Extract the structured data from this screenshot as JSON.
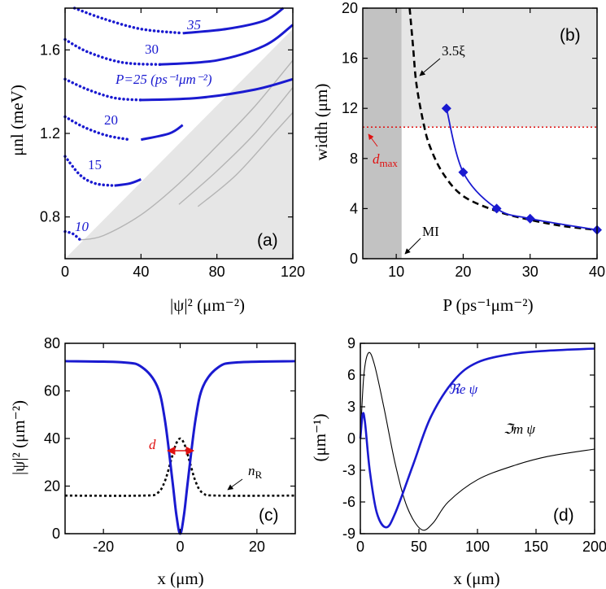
{
  "chart_data": [
    {
      "panel": "a",
      "type": "line",
      "panel_label": "(a)",
      "xlabel": "|ψ|² (μm⁻²)",
      "ylabel": "μnl (meV)",
      "xlim": [
        0,
        120
      ],
      "ylim": [
        0.6,
        1.8
      ],
      "xticks": [
        0,
        40,
        80,
        120
      ],
      "yticks": [
        0.8,
        1.2,
        1.6
      ],
      "xtick_labels": [
        "0",
        "40",
        "80",
        "120"
      ],
      "ytick_labels": [
        "0.8",
        "1.2",
        "1.6"
      ],
      "shaded_region": {
        "description": "below line from (0,0.6) to (120,1.7)",
        "x": [
          0,
          120
        ],
        "y": [
          0.6,
          1.7
        ]
      },
      "series": [
        {
          "name": "P=10",
          "label": "10",
          "dotted": {
            "x": [
              0,
              4,
              8
            ],
            "y": [
              0.73,
              0.72,
              0.69
            ]
          },
          "solid": {
            "x": [],
            "y": []
          }
        },
        {
          "name": "P=15",
          "label": "15",
          "dotted": {
            "x": [
              0,
              8,
              16,
              26
            ],
            "y": [
              1.09,
              1.0,
              0.96,
              0.95
            ]
          },
          "solid": {
            "x": [
              26,
              34,
              40
            ],
            "y": [
              0.95,
              0.96,
              0.98
            ]
          }
        },
        {
          "name": "P=20",
          "label": "20",
          "dotted": {
            "x": [
              0,
              10,
              22,
              34
            ],
            "y": [
              1.28,
              1.23,
              1.19,
              1.17
            ]
          },
          "solid": {
            "x": [
              40,
              55,
              62
            ],
            "y": [
              1.17,
              1.2,
              1.24
            ]
          }
        },
        {
          "name": "P=25",
          "label": "P=25 (ps⁻¹μm⁻²)",
          "dotted": {
            "x": [
              0,
              12,
              26,
              40
            ],
            "y": [
              1.46,
              1.41,
              1.37,
              1.36
            ]
          },
          "solid": {
            "x": [
              40,
              70,
              100,
              120
            ],
            "y": [
              1.36,
              1.37,
              1.41,
              1.46
            ]
          }
        },
        {
          "name": "P=30",
          "label": "30",
          "dotted": {
            "x": [
              0,
              12,
              30,
              50
            ],
            "y": [
              1.65,
              1.59,
              1.54,
              1.53
            ]
          },
          "solid": {
            "x": [
              50,
              80,
              105,
              120
            ],
            "y": [
              1.53,
              1.55,
              1.62,
              1.72
            ]
          }
        },
        {
          "name": "P=35",
          "label": "35",
          "dotted": {
            "x": [
              5,
              20,
              40,
              62
            ],
            "y": [
              1.8,
              1.75,
              1.7,
              1.68
            ]
          },
          "solid": {
            "x": [
              62,
              85,
              105,
              115
            ],
            "y": [
              1.68,
              1.7,
              1.74,
              1.8
            ]
          }
        }
      ],
      "gray_curves": [
        {
          "x": [
            8,
            20,
            40,
            60,
            80,
            100,
            120
          ],
          "y": [
            0.69,
            0.71,
            0.81,
            0.96,
            1.14,
            1.33,
            1.55
          ]
        },
        {
          "x": [
            60,
            80,
            100,
            120
          ],
          "y": [
            0.86,
            1.02,
            1.2,
            1.42
          ]
        },
        {
          "x": [
            70,
            90,
            110,
            120
          ],
          "y": [
            0.85,
            1.0,
            1.2,
            1.3
          ]
        }
      ]
    },
    {
      "panel": "b",
      "type": "line",
      "panel_label": "(b)",
      "xlabel": "P (ps⁻¹μm⁻²)",
      "ylabel": "width (μm)",
      "xlim": [
        5,
        40
      ],
      "ylim": [
        0,
        20
      ],
      "xticks": [
        10,
        20,
        30,
        40
      ],
      "yticks": [
        0,
        4,
        8,
        12,
        16,
        20
      ],
      "xtick_labels": [
        "10",
        "20",
        "30",
        "40"
      ],
      "ytick_labels": [
        "0",
        "4",
        "8",
        "12",
        "16",
        "20"
      ],
      "dark_shade_x": [
        5,
        10.8
      ],
      "light_shade": {
        "x": [
          10.8,
          40
        ],
        "y": [
          10.5,
          20
        ]
      },
      "d_max": 10.5,
      "annotations": {
        "xi": "3.5ξ",
        "dmax": "d",
        "dmax_sub": "max",
        "mi": "MI"
      },
      "series": [
        {
          "name": "3.5xi",
          "style": "dashed",
          "x": [
            12,
            12.5,
            13,
            14,
            15,
            17,
            20,
            25,
            30,
            35,
            40
          ],
          "y": [
            20,
            17,
            14,
            11,
            9,
            6.8,
            5,
            3.8,
            3.1,
            2.6,
            2.3
          ]
        },
        {
          "name": "width",
          "style": "solid-diamond",
          "x": [
            17.5,
            20,
            25,
            30,
            40
          ],
          "y": [
            12,
            6.9,
            4,
            3.2,
            2.3
          ]
        }
      ]
    },
    {
      "panel": "c",
      "type": "line",
      "panel_label": "(c)",
      "xlabel": "x (μm)",
      "ylabel": "|ψ|² (μm⁻²)",
      "xlim": [
        -30,
        30
      ],
      "ylim": [
        0,
        80
      ],
      "xticks": [
        -20,
        0,
        20
      ],
      "yticks": [
        0,
        20,
        40,
        60,
        80
      ],
      "xtick_labels": [
        "-20",
        "0",
        "20"
      ],
      "ytick_labels": [
        "0",
        "20",
        "40",
        "60",
        "80"
      ],
      "annotations": {
        "d": "d",
        "nR": "n",
        "nR_sub": "R"
      },
      "series": [
        {
          "name": "|psi|^2",
          "style": "solid",
          "x": [
            -30,
            -15,
            -10,
            -6,
            -4,
            -2,
            -1,
            0,
            1,
            2,
            4,
            6,
            10,
            15,
            30
          ],
          "y": [
            72.5,
            72,
            70,
            62,
            48,
            22,
            8,
            0,
            8,
            22,
            48,
            62,
            70,
            72,
            72.5
          ]
        },
        {
          "name": "nR",
          "style": "dotted",
          "x": [
            -30,
            -10,
            -6,
            -4,
            -2,
            -1,
            0,
            1,
            2,
            4,
            6,
            10,
            30
          ],
          "y": [
            16,
            16,
            17,
            22,
            33,
            38,
            40,
            38,
            33,
            22,
            17,
            16,
            16
          ]
        }
      ]
    },
    {
      "panel": "d",
      "type": "line",
      "panel_label": "(d)",
      "xlabel": "x (μm)",
      "ylabel": "(μm⁻¹)",
      "xlim": [
        0,
        200
      ],
      "ylim": [
        -9,
        9
      ],
      "xticks": [
        0,
        50,
        100,
        150,
        200
      ],
      "yticks": [
        -9,
        -6,
        -3,
        0,
        3,
        6,
        9
      ],
      "xtick_labels": [
        "0",
        "50",
        "100",
        "150",
        "200"
      ],
      "ytick_labels": [
        "-9",
        "-6",
        "-3",
        "0",
        "3",
        "6",
        "9"
      ],
      "annotations": {
        "re": "ℜe ψ",
        "im": "ℑm ψ"
      },
      "series": [
        {
          "name": "Re psi",
          "style": "thick-blue",
          "x": [
            0,
            2,
            4,
            8,
            14,
            22,
            30,
            45,
            60,
            80,
            100,
            130,
            160,
            200
          ],
          "y": [
            0,
            2.3,
            1.5,
            -3,
            -7,
            -8.4,
            -7,
            -2.5,
            2,
            5.5,
            7.2,
            8,
            8.3,
            8.5
          ]
        },
        {
          "name": "Im psi",
          "style": "thin-black",
          "x": [
            0,
            3,
            7,
            12,
            20,
            30,
            40,
            52,
            62,
            75,
            100,
            130,
            160,
            200
          ],
          "y": [
            0,
            6,
            8.1,
            7,
            3,
            -2.5,
            -6.5,
            -8.6,
            -8,
            -6,
            -3.9,
            -2.6,
            -1.7,
            -1
          ]
        }
      ]
    }
  ]
}
